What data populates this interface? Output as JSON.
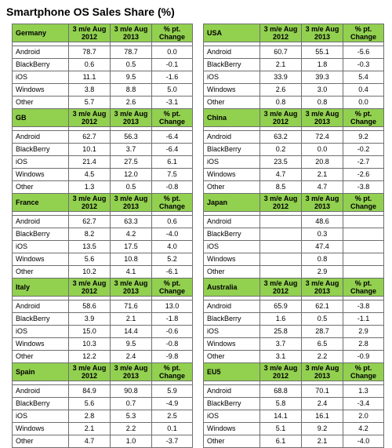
{
  "title": "Smartphone OS Sales Share (%)",
  "headers": {
    "period_2012": "3 m/e Aug 2012",
    "period_2013": "3 m/e Aug 2013",
    "change": "% pt. Change"
  },
  "chart_data": {
    "type": "table",
    "title": "Smartphone OS Sales Share (%)",
    "columns": [
      "3 m/e Aug 2012",
      "3 m/e Aug 2013",
      "% pt. Change"
    ],
    "regions": [
      {
        "name": "Germany",
        "rows": [
          {
            "os": "Android",
            "v2012": "78.7",
            "v2013": "78.7",
            "change": "0.0"
          },
          {
            "os": "BlackBerry",
            "v2012": "0.6",
            "v2013": "0.5",
            "change": "-0.1"
          },
          {
            "os": "iOS",
            "v2012": "11.1",
            "v2013": "9.5",
            "change": "-1.6"
          },
          {
            "os": "Windows",
            "v2012": "3.8",
            "v2013": "8.8",
            "change": "5.0"
          },
          {
            "os": "Other",
            "v2012": "5.7",
            "v2013": "2.6",
            "change": "-3.1"
          }
        ]
      },
      {
        "name": "GB",
        "rows": [
          {
            "os": "Android",
            "v2012": "62.7",
            "v2013": "56.3",
            "change": "-6.4"
          },
          {
            "os": "BlackBerry",
            "v2012": "10.1",
            "v2013": "3.7",
            "change": "-6.4"
          },
          {
            "os": "iOS",
            "v2012": "21.4",
            "v2013": "27.5",
            "change": "6.1"
          },
          {
            "os": "Windows",
            "v2012": "4.5",
            "v2013": "12.0",
            "change": "7.5"
          },
          {
            "os": "Other",
            "v2012": "1.3",
            "v2013": "0.5",
            "change": "-0.8"
          }
        ]
      },
      {
        "name": "France",
        "rows": [
          {
            "os": "Android",
            "v2012": "62.7",
            "v2013": "63.3",
            "change": "0.6"
          },
          {
            "os": "BlackBerry",
            "v2012": "8.2",
            "v2013": "4.2",
            "change": "-4.0"
          },
          {
            "os": "iOS",
            "v2012": "13.5",
            "v2013": "17.5",
            "change": "4.0"
          },
          {
            "os": "Windows",
            "v2012": "5.6",
            "v2013": "10.8",
            "change": "5.2"
          },
          {
            "os": "Other",
            "v2012": "10.2",
            "v2013": "4.1",
            "change": "-6.1"
          }
        ]
      },
      {
        "name": "Italy",
        "rows": [
          {
            "os": "Android",
            "v2012": "58.6",
            "v2013": "71.6",
            "change": "13.0"
          },
          {
            "os": "BlackBerry",
            "v2012": "3.9",
            "v2013": "2.1",
            "change": "-1.8"
          },
          {
            "os": "iOS",
            "v2012": "15.0",
            "v2013": "14.4",
            "change": "-0.6"
          },
          {
            "os": "Windows",
            "v2012": "10.3",
            "v2013": "9.5",
            "change": "-0.8"
          },
          {
            "os": "Other",
            "v2012": "12.2",
            "v2013": "2.4",
            "change": "-9.8"
          }
        ]
      },
      {
        "name": "Spain",
        "rows": [
          {
            "os": "Android",
            "v2012": "84.9",
            "v2013": "90.8",
            "change": "5.9"
          },
          {
            "os": "BlackBerry",
            "v2012": "5.6",
            "v2013": "0.7",
            "change": "-4.9"
          },
          {
            "os": "iOS",
            "v2012": "2.8",
            "v2013": "5.3",
            "change": "2.5"
          },
          {
            "os": "Windows",
            "v2012": "2.1",
            "v2013": "2.2",
            "change": "0.1"
          },
          {
            "os": "Other",
            "v2012": "4.7",
            "v2013": "1.0",
            "change": "-3.7"
          }
        ]
      },
      {
        "name": "USA",
        "rows": [
          {
            "os": "Android",
            "v2012": "60.7",
            "v2013": "55.1",
            "change": "-5.6"
          },
          {
            "os": "BlackBerry",
            "v2012": "2.1",
            "v2013": "1.8",
            "change": "-0.3"
          },
          {
            "os": "iOS",
            "v2012": "33.9",
            "v2013": "39.3",
            "change": "5.4"
          },
          {
            "os": "Windows",
            "v2012": "2.6",
            "v2013": "3.0",
            "change": "0.4"
          },
          {
            "os": "Other",
            "v2012": "0.8",
            "v2013": "0.8",
            "change": "0.0"
          }
        ]
      },
      {
        "name": "China",
        "rows": [
          {
            "os": "Android",
            "v2012": "63.2",
            "v2013": "72.4",
            "change": "9.2"
          },
          {
            "os": "BlackBerry",
            "v2012": "0.2",
            "v2013": "0.0",
            "change": "-0.2"
          },
          {
            "os": "iOS",
            "v2012": "23.5",
            "v2013": "20.8",
            "change": "-2.7"
          },
          {
            "os": "Windows",
            "v2012": "4.7",
            "v2013": "2.1",
            "change": "-2.6"
          },
          {
            "os": "Other",
            "v2012": "8.5",
            "v2013": "4.7",
            "change": "-3.8"
          }
        ]
      },
      {
        "name": "Japan",
        "rows": [
          {
            "os": "Android",
            "v2012": "",
            "v2013": "48.6",
            "change": ""
          },
          {
            "os": "BlackBerry",
            "v2012": "",
            "v2013": "0.3",
            "change": ""
          },
          {
            "os": "iOS",
            "v2012": "",
            "v2013": "47.4",
            "change": ""
          },
          {
            "os": "Windows",
            "v2012": "",
            "v2013": "0.8",
            "change": ""
          },
          {
            "os": "Other",
            "v2012": "",
            "v2013": "2.9",
            "change": ""
          }
        ]
      },
      {
        "name": "Australia",
        "rows": [
          {
            "os": "Android",
            "v2012": "65.9",
            "v2013": "62.1",
            "change": "-3.8"
          },
          {
            "os": "BlackBerry",
            "v2012": "1.6",
            "v2013": "0.5",
            "change": "-1.1"
          },
          {
            "os": "iOS",
            "v2012": "25.8",
            "v2013": "28.7",
            "change": "2.9"
          },
          {
            "os": "Windows",
            "v2012": "3.7",
            "v2013": "6.5",
            "change": "2.8"
          },
          {
            "os": "Other",
            "v2012": "3.1",
            "v2013": "2.2",
            "change": "-0.9"
          }
        ]
      },
      {
        "name": "EU5",
        "rows": [
          {
            "os": "Android",
            "v2012": "68.8",
            "v2013": "70.1",
            "change": "1.3"
          },
          {
            "os": "BlackBerry",
            "v2012": "5.8",
            "v2013": "2.4",
            "change": "-3.4"
          },
          {
            "os": "iOS",
            "v2012": "14.1",
            "v2013": "16.1",
            "change": "2.0"
          },
          {
            "os": "Windows",
            "v2012": "5.1",
            "v2013": "9.2",
            "change": "4.2"
          },
          {
            "os": "Other",
            "v2012": "6.1",
            "v2013": "2.1",
            "change": "-4.0"
          }
        ]
      }
    ]
  },
  "colors": {
    "header_bg": "#92d050",
    "border": "#6f6f6f"
  }
}
